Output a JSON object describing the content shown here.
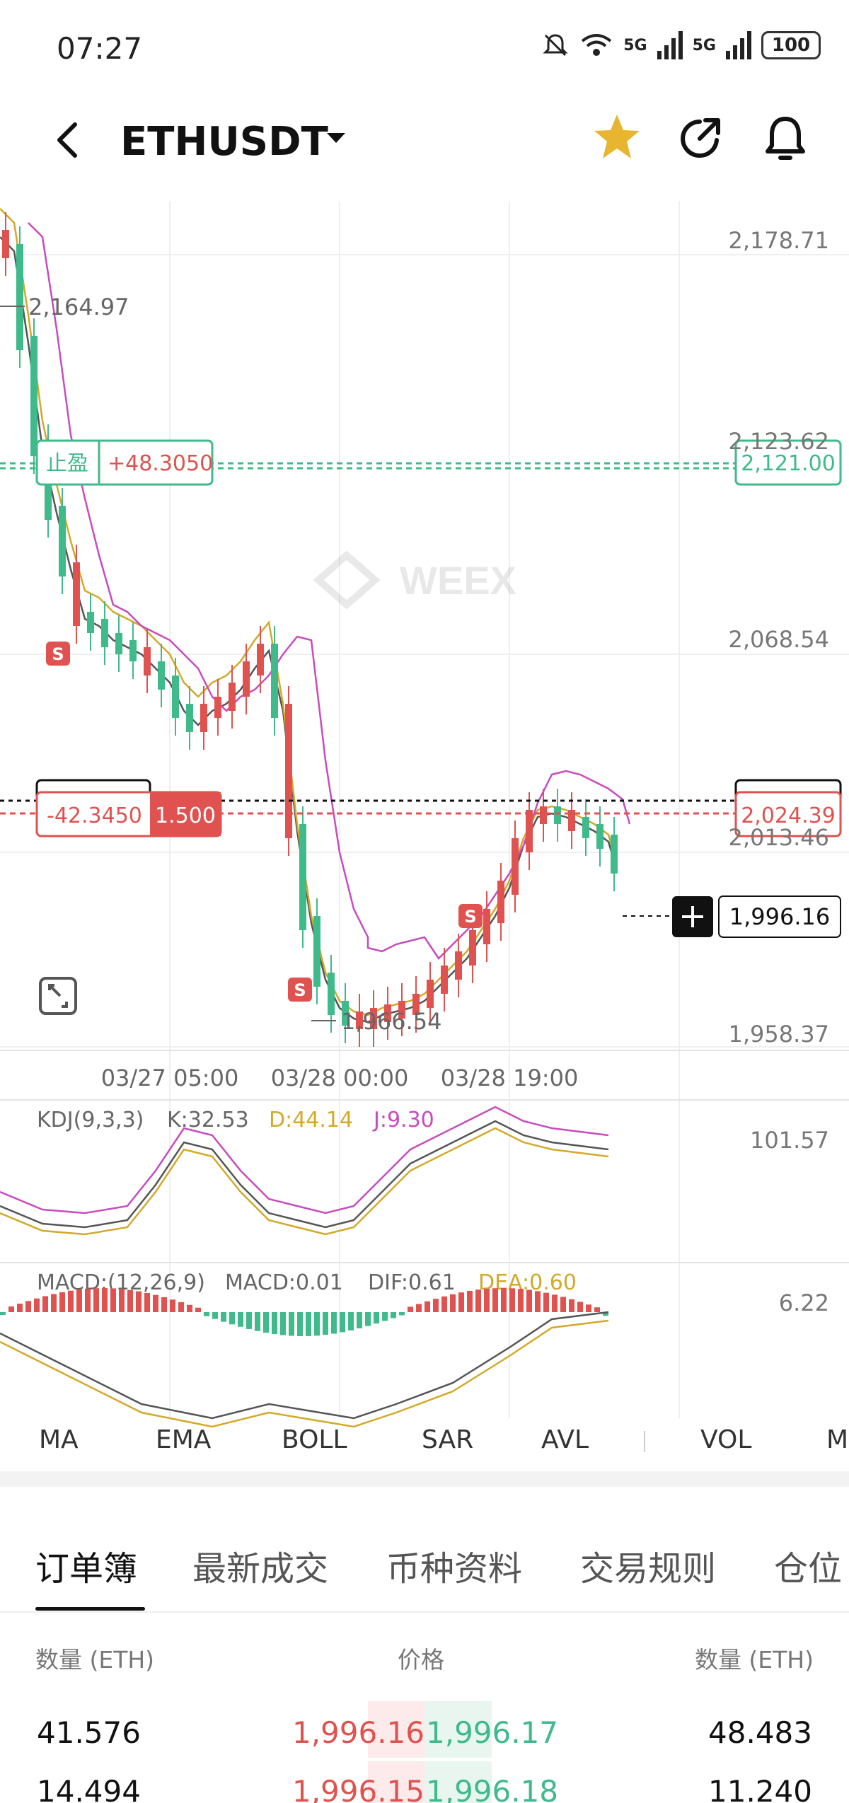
{
  "status_bar": {
    "time": "07:27",
    "network_1": "5G",
    "network_2": "5G",
    "battery": "100"
  },
  "header": {
    "pair": "ETHUSDT"
  },
  "chart": {
    "price_axis": {
      "top": "2,178.71",
      "p2": "2,123.62",
      "p3": "2,068.54",
      "p4": "2,013.46",
      "bottom": "1,958.37"
    },
    "high_label": "2,164.97",
    "low_label": "1,966.54",
    "take_profit": {
      "label": "止盈",
      "pnl": "+48.3050",
      "price": "2,121.00"
    },
    "position": {
      "pnl": "-42.3450",
      "size": "1.500",
      "price": "2,024.39"
    },
    "last_price": "1,996.16",
    "time_axis": [
      "03/27 05:00",
      "03/28 00:00",
      "03/28 19:00"
    ],
    "watermark": "WEEX",
    "sell_marker": "S",
    "colors": {
      "up": "#e0524f",
      "down": "#3fba8a",
      "ma1": "#555555",
      "ma2": "#d4a928",
      "ma3": "#c84bc0"
    }
  },
  "kdj": {
    "label": "KDJ(9,3,3)",
    "k": "K:32.53",
    "d": "D:44.14",
    "j": "J:9.30",
    "axis_top": "101.57"
  },
  "macd": {
    "label": "MACD:(12,26,9)",
    "macd": "MACD:0.01",
    "dif": "DIF:0.61",
    "dea": "DEA:0.60",
    "axis_top": "6.22"
  },
  "indicator_tabs": [
    "MA",
    "EMA",
    "BOLL",
    "SAR",
    "AVL",
    "VOL",
    "M"
  ],
  "tabs": [
    "订单簿",
    "最新成交",
    "币种资料",
    "交易规则",
    "仓位"
  ],
  "order_book": {
    "header_left": "数量 (ETH)",
    "header_mid": "价格",
    "header_right": "数量 (ETH)",
    "rows": [
      {
        "bid_qty": "41.576",
        "bid_price": "1,996.16",
        "ask_price": "1,996.17",
        "ask_qty": "48.483"
      },
      {
        "bid_qty": "14.494",
        "bid_price": "1,996.15",
        "ask_price": "1,996.18",
        "ask_qty": "11.240"
      }
    ]
  }
}
